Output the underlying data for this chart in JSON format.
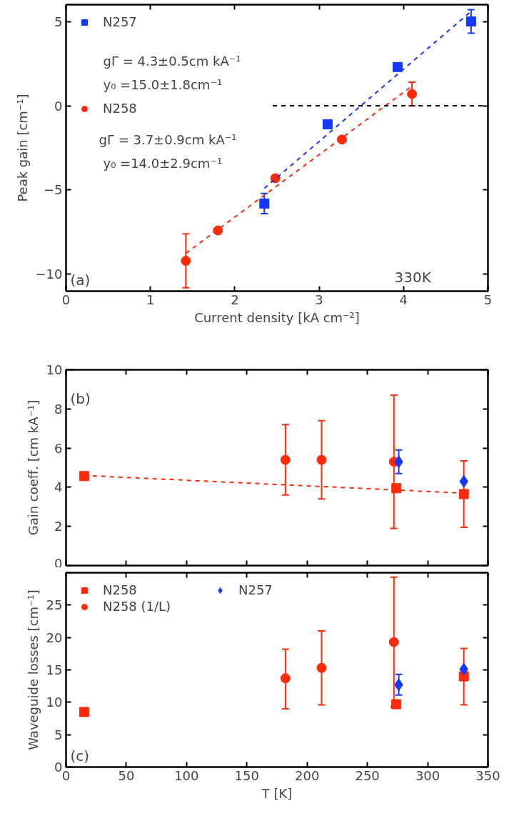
{
  "chart_data": [
    {
      "type": "scatter",
      "xlabel": "Current density [kA cm⁻²]",
      "ylabel": "Peak gain [cm⁻¹]",
      "xlim": [
        0,
        5
      ],
      "ylim": [
        -11,
        6
      ],
      "xticks": [
        0,
        1,
        2,
        3,
        4,
        5
      ],
      "yticks": [
        -10,
        -5,
        0,
        5
      ],
      "legend": "top left",
      "series": [
        {
          "name": "N257",
          "marker": "square",
          "color": "#1438ff",
          "x": [
            2.35,
            3.1,
            3.93,
            4.8
          ],
          "values": [
            -5.8,
            -1.1,
            2.3,
            5.0
          ],
          "errors": [
            0.6,
            null,
            null,
            0.7
          ]
        },
        {
          "name": "N258",
          "marker": "circle",
          "color": "#ff2a0a",
          "x": [
            1.42,
            1.8,
            2.48,
            3.27,
            4.1
          ],
          "values": [
            -9.2,
            -7.4,
            -4.3,
            -2.0,
            0.7
          ],
          "errors": [
            1.6,
            null,
            null,
            null,
            0.7
          ]
        },
        {
          "type": "line",
          "line_style": "dashed",
          "color": "#1438ff",
          "x": [
            2.35,
            4.8
          ],
          "values": [
            -4.9,
            5.6
          ]
        },
        {
          "type": "line",
          "line_style": "dashed",
          "color": "#ff2a0a",
          "x": [
            1.42,
            4.1
          ],
          "values": [
            -8.75,
            1.17
          ]
        },
        {
          "type": "line",
          "line_style": "dashed",
          "color": "#000000",
          "x": [
            2.45,
            5
          ],
          "values": [
            0,
            0
          ]
        }
      ],
      "annotations": [
        "gΓ  =  4.3±0.5cm kA⁻¹",
        "y₀ =15.0±1.8cm⁻¹",
        "gΓ  =  3.7±0.9cm kA⁻¹",
        "y₀ =14.0±2.9cm⁻¹",
        "(a)",
        "330K"
      ]
    },
    {
      "type": "scatter",
      "ylabel": "Gain coeff. [cm kA⁻¹]",
      "xlim": [
        0,
        350
      ],
      "ylim": [
        0,
        10
      ],
      "xticks": [
        0,
        50,
        100,
        150,
        200,
        250,
        300,
        350
      ],
      "yticks": [
        0,
        2,
        4,
        6,
        8,
        10
      ],
      "tick_labels": "y",
      "series": [
        {
          "marker": "square",
          "color": "#ff2a0a",
          "x": [
            15,
            274,
            330
          ],
          "values": [
            4.57,
            3.95,
            3.65
          ],
          "errors": [
            null,
            null,
            1.7
          ]
        },
        {
          "marker": "circle",
          "color": "#ff2a0a",
          "x": [
            182,
            212,
            272
          ],
          "values": [
            5.4,
            5.4,
            5.3
          ],
          "errors": [
            1.8,
            2.0,
            3.4
          ]
        },
        {
          "marker": "diamond",
          "color": "#1438ff",
          "x": [
            276,
            330
          ],
          "values": [
            5.3,
            4.3
          ],
          "errors": [
            0.6,
            null
          ]
        },
        {
          "type": "line",
          "line_style": "dashed",
          "color": "#ff2a0a",
          "x": [
            15,
            330
          ],
          "values": [
            4.6,
            3.7
          ]
        }
      ],
      "annotations": [
        "(b)"
      ]
    },
    {
      "type": "scatter",
      "xlabel": "T [K]",
      "ylabel": "Waveguide losses [cm⁻¹]",
      "xlim": [
        0,
        350
      ],
      "ylim": [
        0,
        30
      ],
      "xticks": [
        0,
        50,
        100,
        150,
        200,
        250,
        300,
        350
      ],
      "yticks": [
        0,
        5,
        10,
        15,
        20,
        25,
        {
          "value": 30,
          "label": null
        }
      ],
      "legend": "top left",
      "series": [
        {
          "name": "N258",
          "marker": "square",
          "color": "#ff2a0a",
          "x": [
            15,
            274,
            330
          ],
          "values": [
            8.5,
            9.7,
            14.0
          ],
          "errors": [
            null,
            null,
            [
              9.6,
              18.3
            ]
          ]
        },
        {
          "name": "N258 (1/L)",
          "marker": "circle",
          "color": "#ff2a0a",
          "x": [
            182,
            212,
            272
          ],
          "values": [
            13.7,
            15.3,
            19.3
          ],
          "errors": [
            [
              9.0,
              18.2
            ],
            [
              9.6,
              21.0
            ],
            [
              9.3,
              29.3
            ]
          ]
        },
        {
          "name": "N257",
          "marker": "diamond",
          "color": "#1438ff",
          "x": [
            276,
            330
          ],
          "values": [
            12.7,
            15.1
          ],
          "errors": [
            [
              11.1,
              14.3
            ],
            null
          ]
        }
      ],
      "annotations": [
        "(c)"
      ]
    }
  ]
}
